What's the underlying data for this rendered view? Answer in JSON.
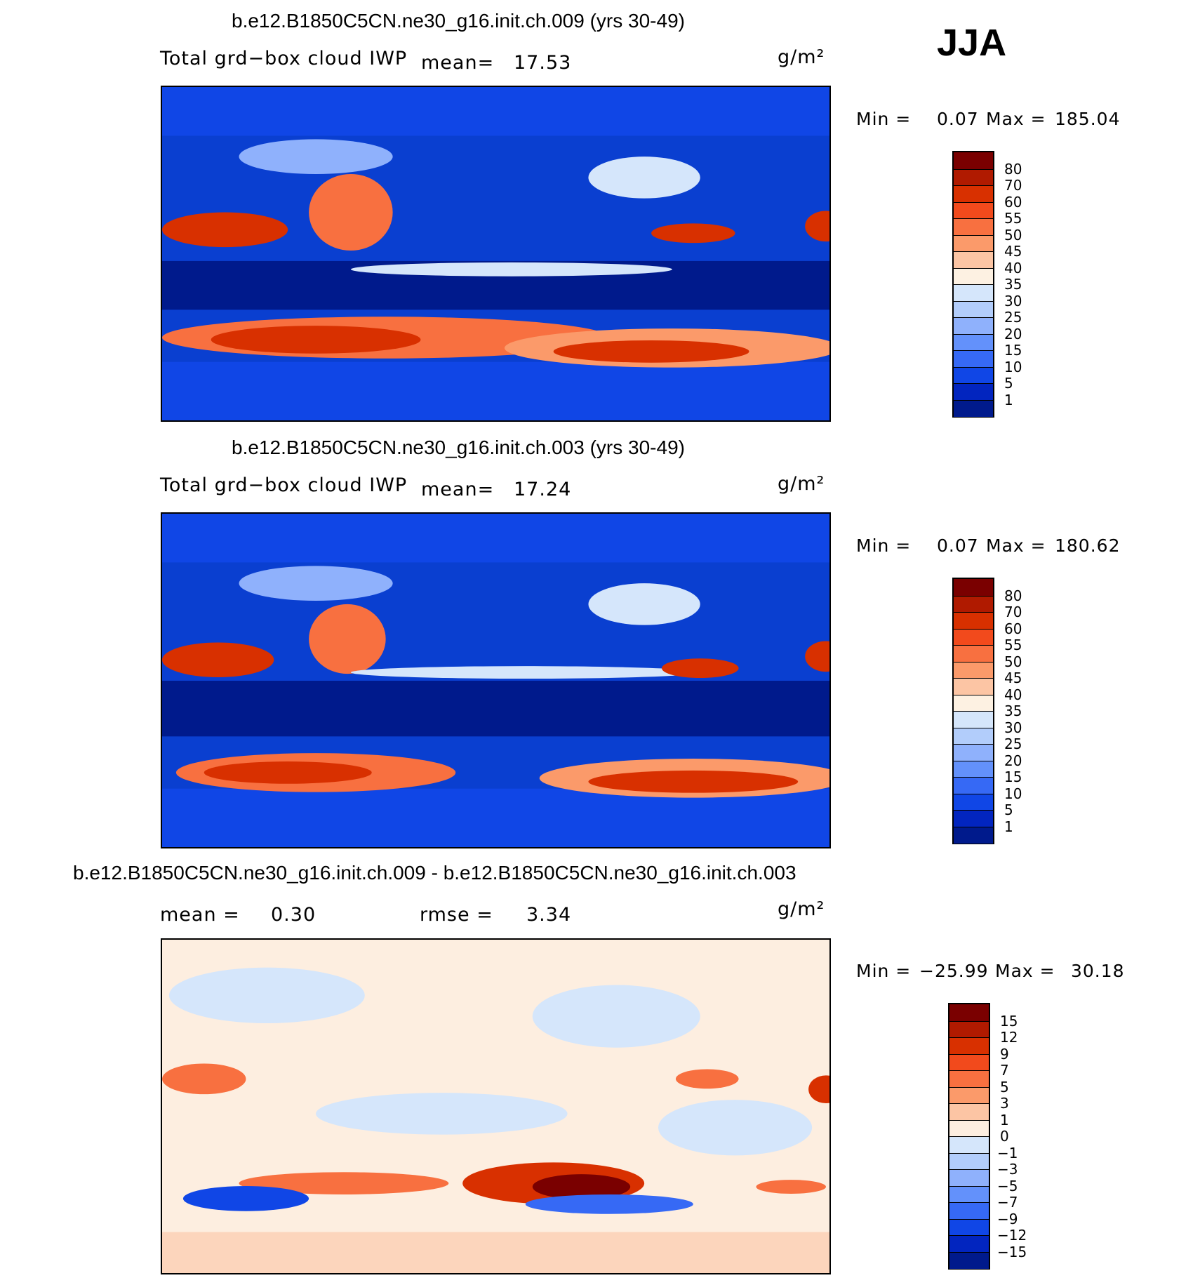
{
  "season": "JJA",
  "units": "g/m²",
  "chart_data": [
    {
      "type": "heatmap",
      "title": "b.e12.B1850C5CN.ne30_g16.init.ch.009 (yrs 30-49)",
      "variable": "Total grd−box cloud IWP",
      "mean_label": "mean=",
      "mean_value": "17.53",
      "units": "g/m²",
      "min_label": "Min =",
      "min": "0.07",
      "max_label": "Max =",
      "max": "185.04",
      "levels": [
        "80",
        "70",
        "60",
        "55",
        "50",
        "45",
        "40",
        "35",
        "30",
        "25",
        "20",
        "15",
        "10",
        "5",
        "1"
      ],
      "colors": [
        "#7a0000",
        "#b01a00",
        "#d83000",
        "#f24a1c",
        "#f87040",
        "#fb9a6a",
        "#fcc5a4",
        "#fdf1e2",
        "#d5e6fb",
        "#b2cdfb",
        "#8fb1fc",
        "#6391fb",
        "#3669f5",
        "#1046e6",
        "#0225bf",
        "#001a8c"
      ]
    },
    {
      "type": "heatmap",
      "title": "b.e12.B1850C5CN.ne30_g16.init.ch.003 (yrs 30-49)",
      "variable": "Total grd−box cloud IWP",
      "mean_label": "mean=",
      "mean_value": "17.24",
      "units": "g/m²",
      "min_label": "Min =",
      "min": "0.07",
      "max_label": "Max =",
      "max": "180.62",
      "levels": [
        "80",
        "70",
        "60",
        "55",
        "50",
        "45",
        "40",
        "35",
        "30",
        "25",
        "20",
        "15",
        "10",
        "5",
        "1"
      ],
      "colors": [
        "#7a0000",
        "#b01a00",
        "#d83000",
        "#f24a1c",
        "#f87040",
        "#fb9a6a",
        "#fcc5a4",
        "#fdf1e2",
        "#d5e6fb",
        "#b2cdfb",
        "#8fb1fc",
        "#6391fb",
        "#3669f5",
        "#1046e6",
        "#0225bf",
        "#001a8c"
      ]
    },
    {
      "type": "heatmap",
      "title": "b.e12.B1850C5CN.ne30_g16.init.ch.009 - b.e12.B1850C5CN.ne30_g16.init.ch.003",
      "mean_label": "mean =",
      "mean_value": "0.30",
      "rmse_label": "rmse =",
      "rmse_value": "3.34",
      "units": "g/m²",
      "min_label": "Min =",
      "min": "−25.99",
      "max_label": "Max =",
      "max": "30.18",
      "levels": [
        "15",
        "12",
        "9",
        "7",
        "5",
        "3",
        "1",
        "0",
        "−1",
        "−3",
        "−5",
        "−7",
        "−9",
        "−12",
        "−15"
      ],
      "colors": [
        "#7a0000",
        "#b01a00",
        "#d83000",
        "#f24a1c",
        "#f87040",
        "#fb9a6a",
        "#fcc5a4",
        "#fdeee0",
        "#d5e6fb",
        "#b2cdfb",
        "#8fb1fc",
        "#6391fb",
        "#3669f5",
        "#1046e6",
        "#0225bf",
        "#001a8c"
      ]
    }
  ]
}
